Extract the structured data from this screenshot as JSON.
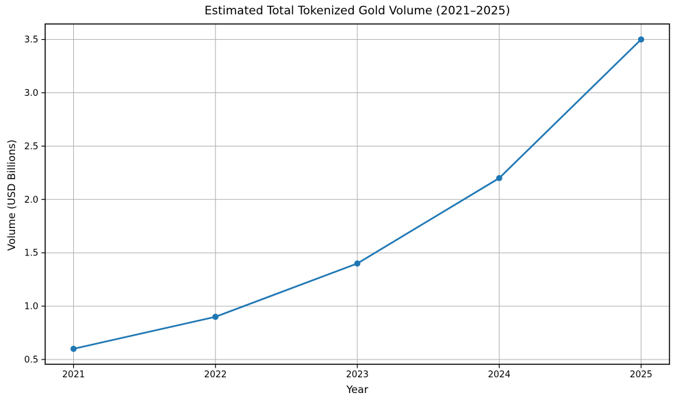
{
  "chart_data": {
    "type": "line",
    "title": "Estimated Total Tokenized Gold Volume (2021–2025)",
    "xlabel": "Year",
    "ylabel": "Volume (USD Billions)",
    "categories": [
      "2021",
      "2022",
      "2023",
      "2024",
      "2025"
    ],
    "x": [
      2021,
      2022,
      2023,
      2024,
      2025
    ],
    "values": [
      0.6,
      0.9,
      1.4,
      2.2,
      3.5
    ],
    "yticks": [
      0.5,
      1.0,
      1.5,
      2.0,
      2.5,
      3.0,
      3.5
    ],
    "ytick_labels": [
      "0.5",
      "1.0",
      "1.5",
      "2.0",
      "2.5",
      "3.0",
      "3.5"
    ],
    "xlim": [
      2020.8,
      2025.2
    ],
    "ylim": [
      0.455,
      3.645
    ],
    "grid": true,
    "legend": false,
    "line_color": "#1f77b4",
    "marker": "o",
    "grid_color": "#b0b0b0",
    "axis_color": "#000000",
    "background_color": "#ffffff"
  }
}
